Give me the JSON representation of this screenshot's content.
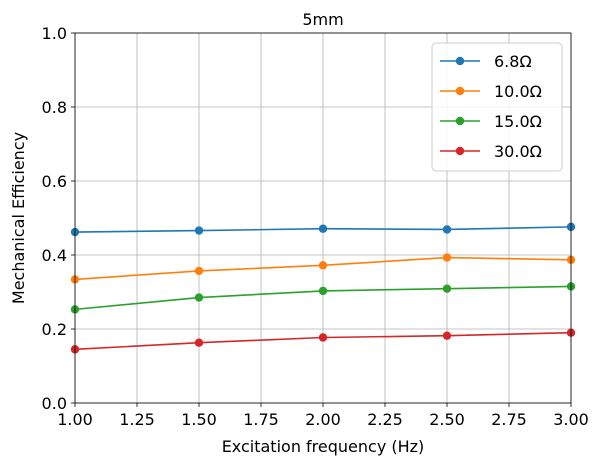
{
  "chart_data": {
    "type": "line",
    "title": "5mm",
    "xlabel": "Excitation frequency (Hz)",
    "ylabel": "Mechanical Efficiency",
    "xlim": [
      1.0,
      3.0
    ],
    "ylim": [
      0.0,
      1.0
    ],
    "xticks": [
      1.0,
      1.25,
      1.5,
      1.75,
      2.0,
      2.25,
      2.5,
      2.75,
      3.0
    ],
    "xtick_labels": [
      "1.00",
      "1.25",
      "1.50",
      "1.75",
      "2.00",
      "2.25",
      "2.50",
      "2.75",
      "3.00"
    ],
    "yticks": [
      0.0,
      0.2,
      0.4,
      0.6,
      0.8,
      1.0
    ],
    "ytick_labels": [
      "0.0",
      "0.2",
      "0.4",
      "0.6",
      "0.8",
      "1.0"
    ],
    "grid": true,
    "legend_position": "top-right",
    "x": [
      1.0,
      1.5,
      2.0,
      2.5,
      3.0
    ],
    "series": [
      {
        "name": "6.8Ω",
        "color": "#1f77b4",
        "values": [
          0.462,
          0.466,
          0.471,
          0.469,
          0.476
        ]
      },
      {
        "name": "10.0Ω",
        "color": "#ff7f0e",
        "values": [
          0.334,
          0.357,
          0.372,
          0.393,
          0.387
        ]
      },
      {
        "name": "15.0Ω",
        "color": "#2ca02c",
        "values": [
          0.253,
          0.285,
          0.303,
          0.309,
          0.315
        ]
      },
      {
        "name": "30.0Ω",
        "color": "#d62728",
        "values": [
          0.145,
          0.163,
          0.177,
          0.182,
          0.19
        ]
      }
    ]
  }
}
